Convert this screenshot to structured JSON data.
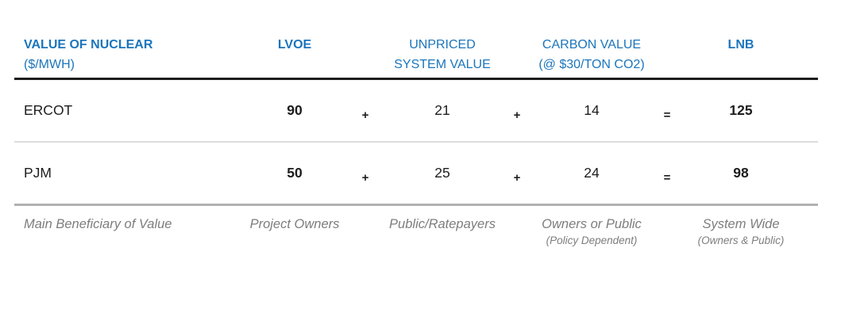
{
  "palette": {
    "header_blue": "#1b75bc",
    "text_dark": "#1d1d1d",
    "footer_gray": "#7d7d7d",
    "rule_dark": "#1c1c1c",
    "rule_light": "#dcdcdc",
    "rule_medium": "#b1b1b1"
  },
  "table": {
    "header": {
      "label_title": "VALUE OF NUCLEAR",
      "label_unit": "($/MWH)",
      "col_lvoe": "LVOE",
      "col_unpriced_line1": "UNPRICED",
      "col_unpriced_line2": "SYSTEM VALUE",
      "col_carbon_line1": "CARBON VALUE",
      "col_carbon_line2": "(@ $30/TON CO2)",
      "col_lnb": "LNB"
    },
    "operators": {
      "plus": "+",
      "equals": "="
    },
    "rows": [
      {
        "label": "ERCOT",
        "lvoe": "90",
        "unpriced": "21",
        "carbon": "14",
        "lnb": "125"
      },
      {
        "label": "PJM",
        "lvoe": "50",
        "unpriced": "25",
        "carbon": "24",
        "lnb": "98"
      }
    ],
    "footer": {
      "label": "Main Beneficiary of Value",
      "lvoe_line1": "Project Owners",
      "unpriced_line1": "Public/Ratepayers",
      "carbon_line1": "Owners or Public",
      "carbon_line2": "(Policy Dependent)",
      "lnb_line1": "System Wide",
      "lnb_line2": "(Owners & Public)"
    }
  },
  "chart_data": {
    "type": "table",
    "title": "VALUE OF NUCLEAR ($/MWH)",
    "columns": [
      "LVOE",
      "UNPRICED SYSTEM VALUE",
      "CARBON VALUE (@ $30/TON CO2)",
      "LNB"
    ],
    "rows": [
      {
        "label": "ERCOT",
        "values": [
          90,
          21,
          14,
          125
        ]
      },
      {
        "label": "PJM",
        "values": [
          50,
          25,
          24,
          98
        ]
      }
    ],
    "relation": "LVOE + UNPRICED SYSTEM VALUE + CARBON VALUE = LNB",
    "beneficiaries": [
      "Project Owners",
      "Public/Ratepayers",
      "Owners or Public (Policy Dependent)",
      "System Wide (Owners & Public)"
    ]
  }
}
